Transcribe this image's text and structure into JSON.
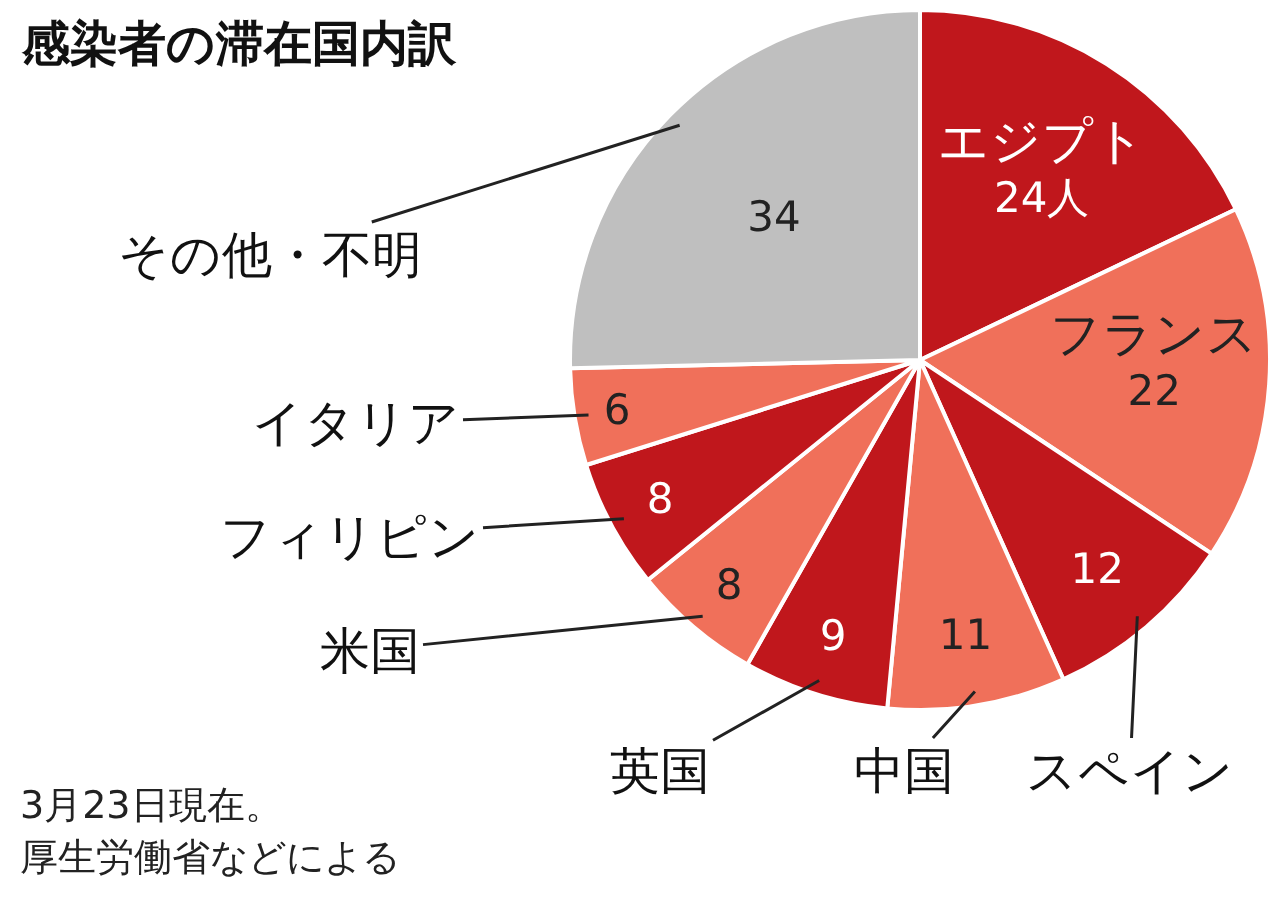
{
  "chart_data": {
    "type": "pie",
    "title": "感染者の滞在国内訳",
    "categories": [
      "エジプト",
      "フランス",
      "スペイン",
      "中国",
      "英国",
      "米国",
      "フィリピン",
      "イタリア",
      "その他・不明"
    ],
    "values": [
      24,
      22,
      12,
      11,
      9,
      8,
      8,
      6,
      34
    ],
    "value_labels": [
      "24人",
      "22",
      "12",
      "11",
      "9",
      "8",
      "8",
      "6",
      "34"
    ],
    "colors": [
      "#c0171c",
      "#f0705a",
      "#c0171c",
      "#f0705a",
      "#c0171c",
      "#f0705a",
      "#c0171c",
      "#f0705a",
      "#bfbfbf"
    ],
    "annotations": [
      "3月23日現在。",
      "厚生労働省などによる"
    ],
    "legend": false
  }
}
